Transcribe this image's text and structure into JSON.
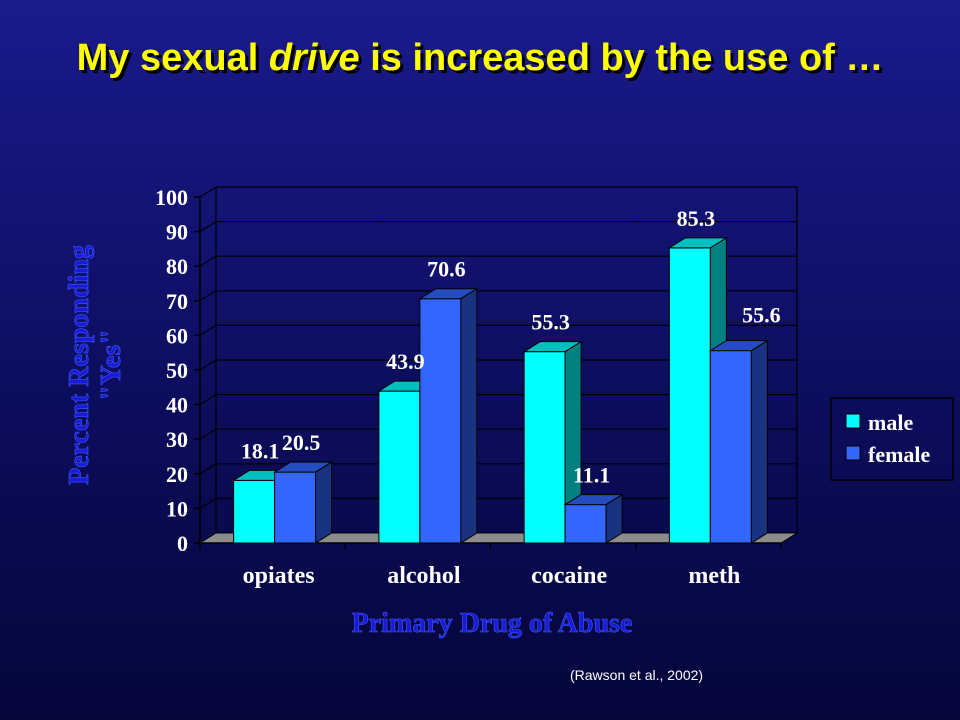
{
  "title": {
    "part1": "My sexual ",
    "emphasis": "drive",
    "part2": " is increased by the use of …"
  },
  "citation": "(Rawson et al., 2002)",
  "colors": {
    "male": "#00ffff",
    "female": "#3366ff",
    "axis_title": "#1a1ad6",
    "title": "#ffff00"
  },
  "chart_data": {
    "type": "bar",
    "categories": [
      "opiates",
      "alcohol",
      "cocaine",
      "meth"
    ],
    "series": [
      {
        "name": "male",
        "values": [
          18.1,
          43.9,
          55.3,
          85.3
        ]
      },
      {
        "name": "female",
        "values": [
          20.5,
          70.6,
          11.1,
          55.6
        ]
      }
    ],
    "data_labels": [
      [
        "18.1",
        "43.9",
        "55.3",
        "85.3"
      ],
      [
        "20.5",
        "70.6",
        "11.1",
        "55.6"
      ]
    ],
    "xlabel": "Primary Drug of Abuse",
    "ylabel": [
      "Percent Responding",
      "\"Yes\""
    ],
    "ylim": [
      0,
      100
    ],
    "yticks": [
      0,
      10,
      20,
      30,
      40,
      50,
      60,
      70,
      80,
      90,
      100
    ],
    "grid": true,
    "three_d": true,
    "legend": "right"
  }
}
